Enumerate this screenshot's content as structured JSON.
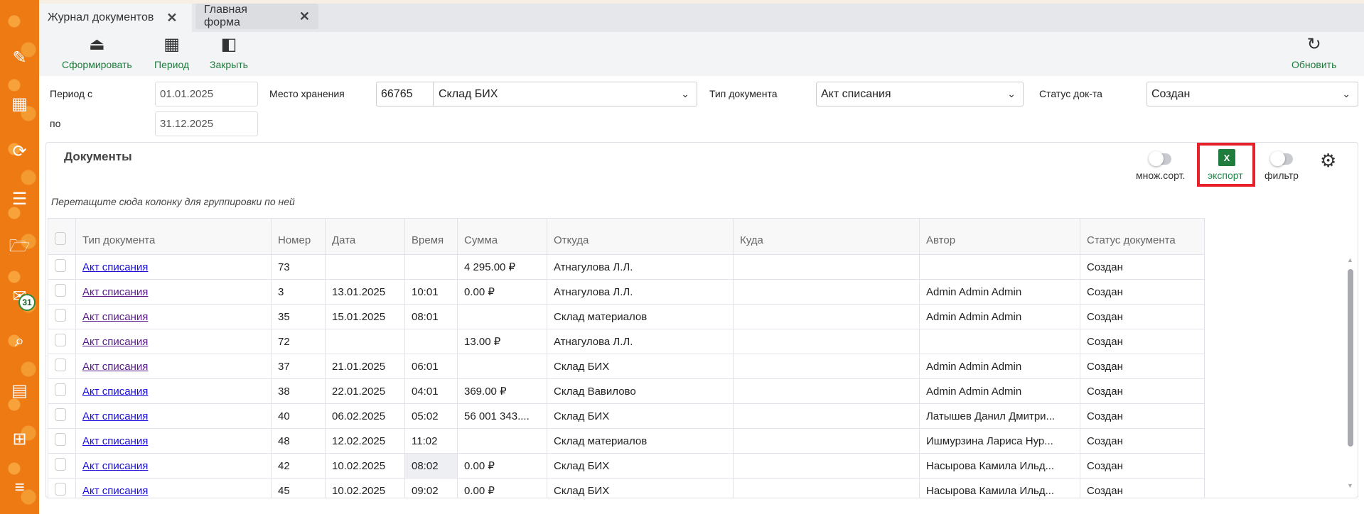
{
  "tabs": [
    {
      "label": "Журнал документов"
    },
    {
      "label": "Главная форма"
    }
  ],
  "toolbar": {
    "form": "Сформировать",
    "period": "Период",
    "close": "Закрыть",
    "refresh": "Обновить"
  },
  "filters": {
    "period_from_label": "Период с",
    "period_from": "01.01.2025",
    "period_to_label": "по",
    "period_to": "31.12.2025",
    "storage_label": "Место хранения",
    "storage_code": "66765",
    "storage_name": "Склад БИХ",
    "doc_type_label": "Тип документа",
    "doc_type": "Акт списания",
    "status_label": "Статус док-та",
    "status": "Создан"
  },
  "sidebar": {
    "mail_badge": "31",
    "accent": "#ee7a14",
    "icons": [
      "pencil-icon",
      "qr-code-icon",
      "sync-icon",
      "list-download-icon",
      "folder-icon",
      "mail-icon",
      "search-icon",
      "calendar-icon",
      "table-clock-icon",
      "list-check-icon"
    ]
  },
  "panel": {
    "title": "Документы",
    "multisort": "множ.сорт.",
    "export": "экспорт",
    "export_icon": "X",
    "filter": "фильтр",
    "group_hint": "Перетащите сюда колонку для группировки по ней"
  },
  "table": {
    "columns": [
      "Тип документа",
      "Номер",
      "Дата",
      "Время",
      "Сумма",
      "Откуда",
      "Куда",
      "Автор",
      "Статус документа"
    ],
    "rows": [
      [
        "Акт списания",
        "73",
        "",
        "",
        "4 295.00 ₽",
        "Атнагулова Л.Л.",
        "",
        "",
        "Создан"
      ],
      [
        "Акт списания",
        "3",
        "13.01.2025",
        "10:01",
        "0.00 ₽",
        "Атнагулова Л.Л.",
        "",
        "Admin Admin Admin",
        "Создан"
      ],
      [
        "Акт списания",
        "35",
        "15.01.2025",
        "08:01",
        "",
        "Склад материалов",
        "",
        "Admin Admin Admin",
        "Создан"
      ],
      [
        "Акт списания",
        "72",
        "",
        "",
        "13.00 ₽",
        "Атнагулова Л.Л.",
        "",
        "",
        "Создан"
      ],
      [
        "Акт списания",
        "37",
        "21.01.2025",
        "06:01",
        "",
        "Склад БИХ",
        "",
        "Admin Admin Admin",
        "Создан"
      ],
      [
        "Акт списания",
        "38",
        "22.01.2025",
        "04:01",
        "369.00 ₽",
        "Склад Вавилово",
        "",
        "Admin Admin Admin",
        "Создан"
      ],
      [
        "Акт списания",
        "40",
        "06.02.2025",
        "05:02",
        "56 001 343....",
        "Склад БИХ",
        "",
        "Латышев Данил Дмитри...",
        "Создан"
      ],
      [
        "Акт списания",
        "48",
        "12.02.2025",
        "11:02",
        "",
        "Склад материалов",
        "",
        "Ишмурзина Лариса Нур...",
        "Создан"
      ],
      [
        "Акт списания",
        "42",
        "10.02.2025",
        "08:02",
        "0.00 ₽",
        "Склад БИХ",
        "",
        "Насырова Камила Ильд...",
        "Создан"
      ],
      [
        "Акт списания",
        "45",
        "10.02.2025",
        "09:02",
        "0.00 ₽",
        "Склад БИХ",
        "",
        "Насырова Камила Ильд...",
        "Создан"
      ]
    ]
  }
}
